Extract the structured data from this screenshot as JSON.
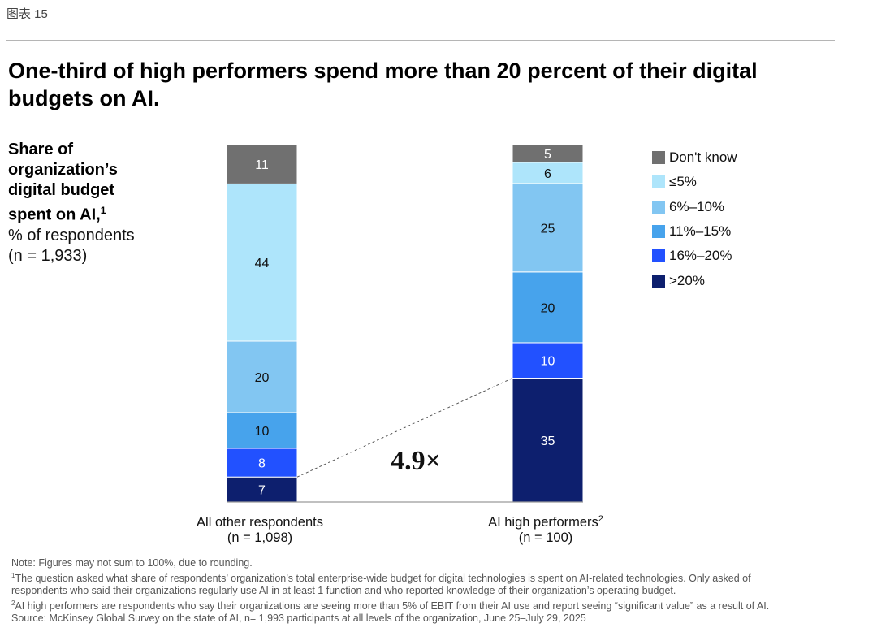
{
  "header": {
    "exhibit_label": "图表 15"
  },
  "title": "One-third of high performers spend more than 20 percent of their digital budgets on AI.",
  "y_label": {
    "line1": "Share of",
    "line2": "organization’s",
    "line3": "digital budget",
    "line4": "spent on AI,",
    "line4_sup": "1",
    "line5": "% of respondents",
    "line6": "(n = 1,933)"
  },
  "multiplier_label": "4.9×",
  "colors": {
    "dont_know": "#707070",
    "le5": "#aee5fb",
    "p6_10": "#82c6f2",
    "p11_15": "#47a3ec",
    "p16_20": "#2251ff",
    "gt20": "#0d1f6e"
  },
  "chart_data": {
    "type": "bar",
    "stacked": true,
    "orientation": "vertical",
    "categories": [
      {
        "name": "All other respondents",
        "n": "(n = 1,098)",
        "sup": ""
      },
      {
        "name": "AI high performers",
        "n": "(n = 100)",
        "sup": "2"
      }
    ],
    "series": [
      {
        "name": ">20%",
        "color_key": "gt20",
        "values": [
          7,
          35
        ]
      },
      {
        "name": "16%–20%",
        "color_key": "p16_20",
        "values": [
          8,
          10
        ]
      },
      {
        "name": "11%–15%",
        "color_key": "p11_15",
        "values": [
          10,
          20
        ]
      },
      {
        "name": "6%–10%",
        "color_key": "p6_10",
        "values": [
          20,
          25
        ]
      },
      {
        "name": "≤5%",
        "color_key": "le5",
        "values": [
          44,
          6
        ]
      },
      {
        "name": "Don't know",
        "color_key": "dont_know",
        "values": [
          11,
          5
        ]
      }
    ],
    "legend_order": [
      "Don't know",
      "≤5%",
      "6%–10%",
      "11%–15%",
      "16%–20%",
      ">20%"
    ],
    "annotation": {
      "text": "4.9×",
      "from_series": ">20%"
    },
    "ylim": [
      0,
      100
    ]
  },
  "notes": {
    "note": "Note: Figures may not sum to 100%, due to rounding.",
    "fn1_num": "1",
    "fn1": "The question asked what share of respondents’ organization’s total enterprise-wide budget for digital technologies is spent on AI-related technologies. Only asked of",
    "fn1b": "respondents who said their organizations regularly use AI in at least 1 function and who reported knowledge of their organization’s operating budget.",
    "fn2_num": "2",
    "fn2": "AI high performers are respondents who say their organizations are seeing more than 5% of EBIT from their AI use and report seeing “significant value” as a result of AI.",
    "source": "Source: McKinsey Global Survey on the state of AI, n= 1,993 participants at all levels of the organization, June 25–July 29, 2025"
  }
}
